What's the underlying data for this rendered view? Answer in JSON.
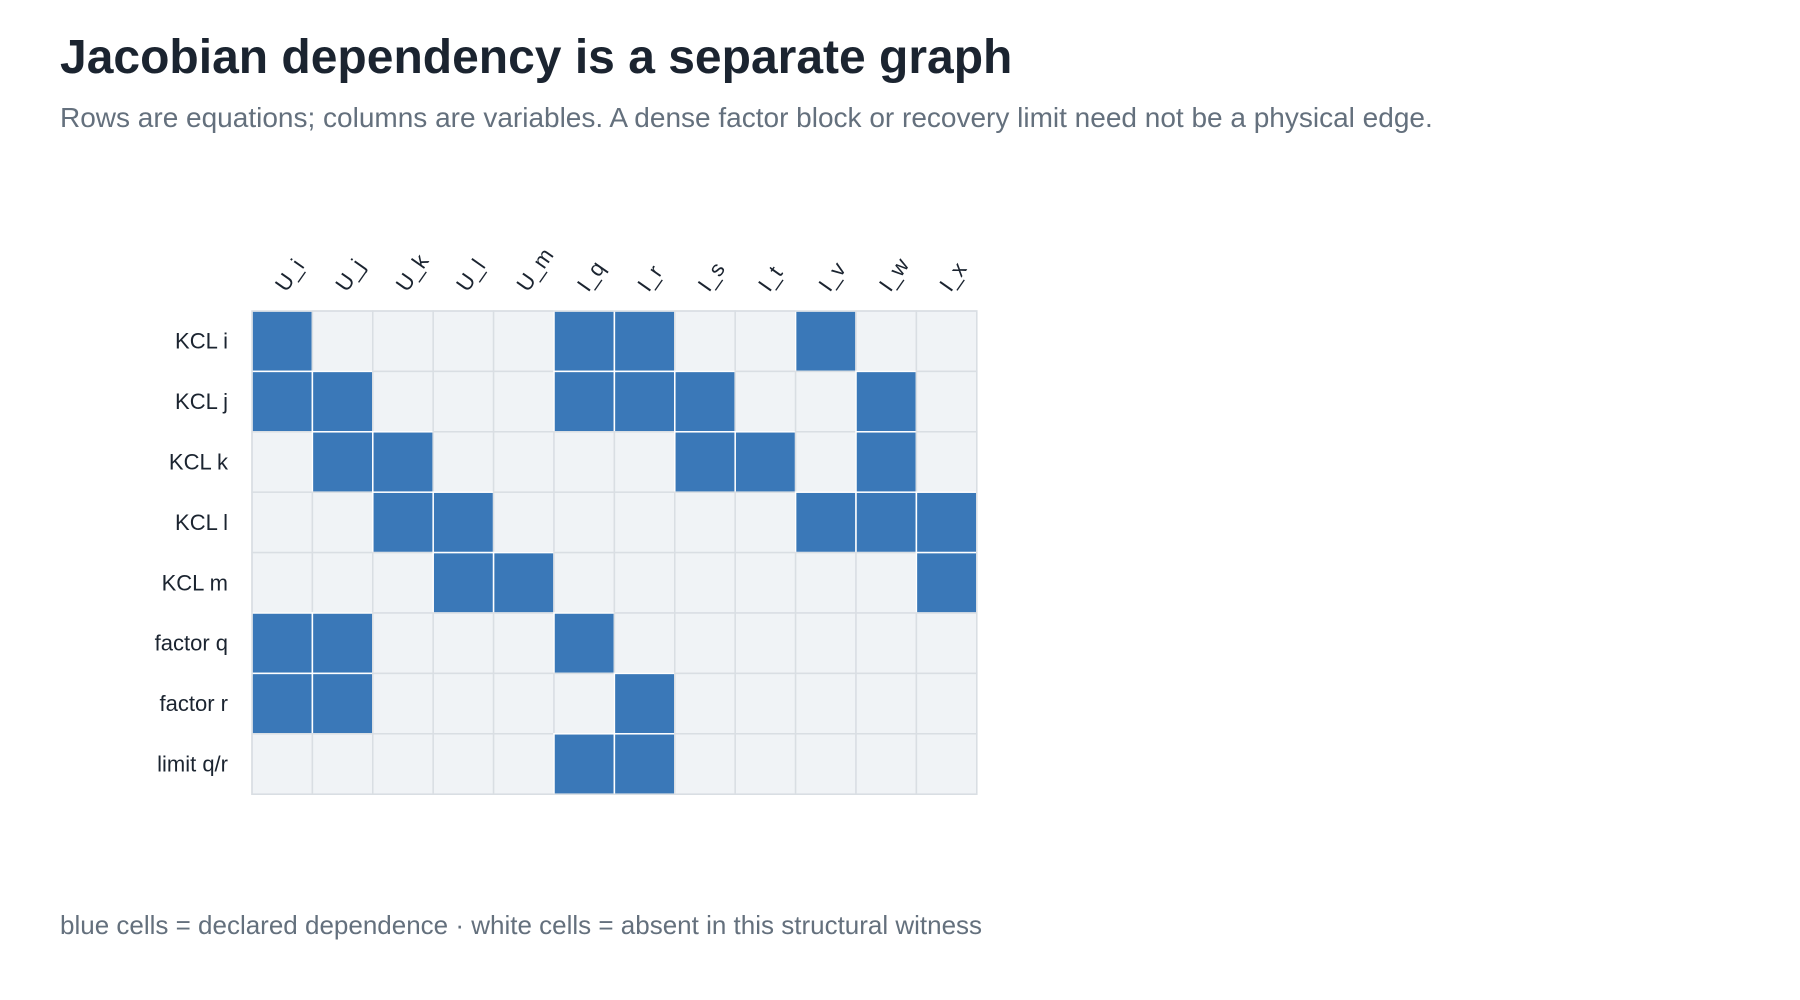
{
  "header": {
    "title": "Jacobian dependency is a separate graph",
    "subtitle": "Rows are equations; columns are variables. A dense factor block or recovery limit need not be a physical edge."
  },
  "caption": "blue cells = declared dependence · white cells = absent in this structural witness",
  "colors": {
    "filled": "#3a78b8",
    "empty": "#f0f3f6",
    "grid": "#d9dee3",
    "label": "#1b2430"
  },
  "chart_data": {
    "type": "heatmap",
    "title": "Jacobian dependency is a separate graph",
    "subtitle": "Rows are equations; columns are variables. A dense factor block or recovery limit need not be a physical edge.",
    "columns": [
      "U_i",
      "U_j",
      "U_k",
      "U_l",
      "U_m",
      "I_q",
      "I_r",
      "I_s",
      "I_t",
      "I_v",
      "I_w",
      "I_x"
    ],
    "rows": [
      "KCL i",
      "KCL j",
      "KCL k",
      "KCL l",
      "KCL m",
      "factor q",
      "factor r",
      "limit q/r"
    ],
    "values": [
      [
        1,
        0,
        0,
        0,
        0,
        1,
        1,
        0,
        0,
        1,
        0,
        0
      ],
      [
        1,
        1,
        0,
        0,
        0,
        1,
        1,
        1,
        0,
        0,
        1,
        0
      ],
      [
        0,
        1,
        1,
        0,
        0,
        0,
        0,
        1,
        1,
        0,
        1,
        0
      ],
      [
        0,
        0,
        1,
        1,
        0,
        0,
        0,
        0,
        0,
        1,
        1,
        1
      ],
      [
        0,
        0,
        0,
        1,
        1,
        0,
        0,
        0,
        0,
        0,
        0,
        1
      ],
      [
        1,
        1,
        0,
        0,
        0,
        1,
        0,
        0,
        0,
        0,
        0,
        0
      ],
      [
        1,
        1,
        0,
        0,
        0,
        0,
        1,
        0,
        0,
        0,
        0,
        0
      ],
      [
        0,
        0,
        0,
        0,
        0,
        1,
        1,
        0,
        0,
        0,
        0,
        0
      ]
    ],
    "legend": "blue cells = declared dependence · white cells = absent in this structural witness"
  }
}
